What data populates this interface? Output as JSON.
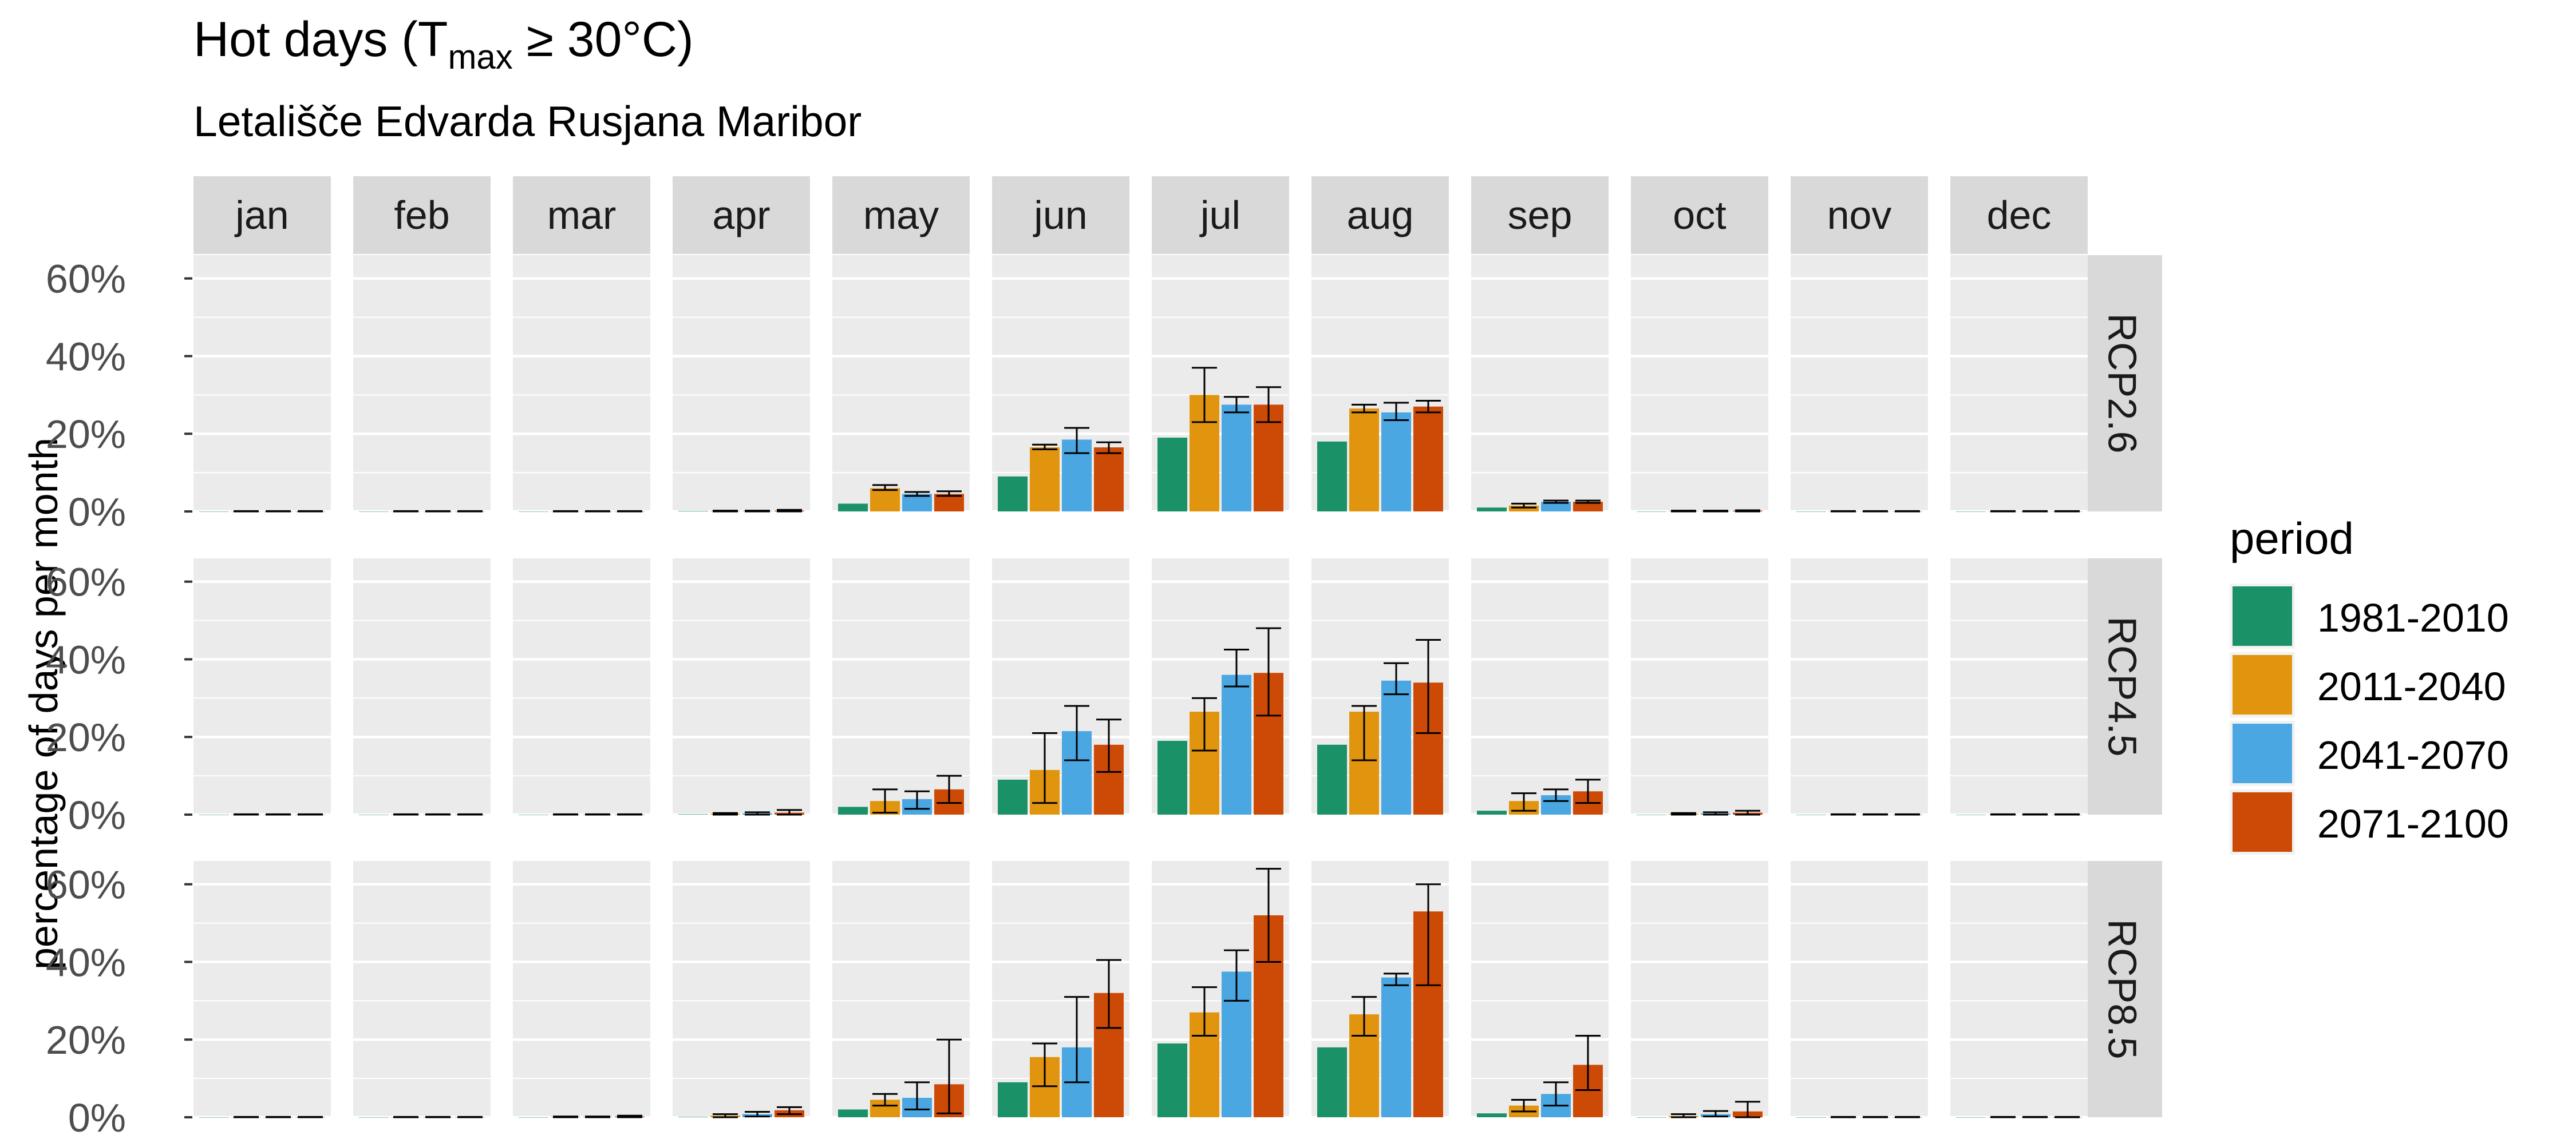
{
  "chart_data": {
    "type": "bar",
    "title_main": "Hot days (T",
    "title_sub": "max",
    "title_end": " ≥ 30°C)",
    "subtitle": "Letališče Edvarda Rusjana Maribor",
    "ylabel": "percentage of days per month",
    "xlabel": "",
    "ylim": [
      0,
      0.66
    ],
    "yticks": [
      0,
      0.2,
      0.4,
      0.6
    ],
    "ytick_labels": [
      "0%",
      "20%",
      "40%",
      "60%"
    ],
    "grid": true,
    "months": [
      "jan",
      "feb",
      "mar",
      "apr",
      "may",
      "jun",
      "jul",
      "aug",
      "sep",
      "oct",
      "nov",
      "dec"
    ],
    "legend": {
      "title": "period",
      "placement": "right",
      "entries": [
        "1981-2010",
        "2011-2040",
        "2041-2070",
        "2071-2100"
      ]
    },
    "colors": [
      "#1a9167",
      "#e1940d",
      "#4ba7e2",
      "#cd4a06"
    ],
    "scenarios": [
      {
        "name": "RCP2.6",
        "values": [
          [
            0,
            0,
            0,
            0
          ],
          [
            0,
            0,
            0,
            0
          ],
          [
            0,
            0,
            0,
            0
          ],
          [
            0.001,
            0.001,
            0.001,
            0.002
          ],
          [
            0.02,
            0.06,
            0.045,
            0.045
          ],
          [
            0.09,
            0.165,
            0.185,
            0.165
          ],
          [
            0.19,
            0.3,
            0.275,
            0.275
          ],
          [
            0.18,
            0.265,
            0.255,
            0.27
          ],
          [
            0.01,
            0.015,
            0.025,
            0.025
          ],
          [
            0,
            0.001,
            0.001,
            0.002
          ],
          [
            0,
            0,
            0,
            0
          ],
          [
            0,
            0,
            0,
            0
          ]
        ],
        "errors": [
          [
            null,
            [
              0,
              0.001
            ],
            [
              0,
              0.001
            ],
            [
              0,
              0.001
            ]
          ],
          [
            null,
            [
              0,
              0.001
            ],
            [
              0,
              0.001
            ],
            [
              0,
              0.001
            ]
          ],
          [
            null,
            [
              0,
              0.001
            ],
            [
              0,
              0.001
            ],
            [
              0,
              0.001
            ]
          ],
          [
            null,
            [
              0,
              0.002
            ],
            [
              0,
              0.002
            ],
            [
              0,
              0.004
            ]
          ],
          [
            null,
            [
              0.055,
              0.068
            ],
            [
              0.04,
              0.05
            ],
            [
              0.04,
              0.052
            ]
          ],
          [
            null,
            [
              0.16,
              0.172
            ],
            [
              0.15,
              0.215
            ],
            [
              0.15,
              0.178
            ]
          ],
          [
            null,
            [
              0.23,
              0.37
            ],
            [
              0.255,
              0.295
            ],
            [
              0.23,
              0.32
            ]
          ],
          [
            null,
            [
              0.255,
              0.275
            ],
            [
              0.235,
              0.28
            ],
            [
              0.255,
              0.285
            ]
          ],
          [
            null,
            [
              0.01,
              0.02
            ],
            [
              0.022,
              0.028
            ],
            [
              0.022,
              0.028
            ]
          ],
          [
            null,
            [
              0,
              0.002
            ],
            [
              0,
              0.002
            ],
            [
              0,
              0.003
            ]
          ],
          [
            null,
            [
              0,
              0.001
            ],
            [
              0,
              0.001
            ],
            [
              0,
              0.001
            ]
          ],
          [
            null,
            [
              0,
              0.001
            ],
            [
              0,
              0.001
            ],
            [
              0,
              0.001
            ]
          ]
        ]
      },
      {
        "name": "RCP4.5",
        "values": [
          [
            0,
            0,
            0,
            0
          ],
          [
            0,
            0,
            0,
            0
          ],
          [
            0,
            0,
            0,
            0
          ],
          [
            0.001,
            0.002,
            0.003,
            0.005
          ],
          [
            0.02,
            0.035,
            0.04,
            0.065
          ],
          [
            0.09,
            0.115,
            0.215,
            0.18
          ],
          [
            0.19,
            0.265,
            0.36,
            0.365
          ],
          [
            0.18,
            0.265,
            0.345,
            0.34
          ],
          [
            0.01,
            0.035,
            0.05,
            0.06
          ],
          [
            0,
            0.002,
            0.003,
            0.005
          ],
          [
            0,
            0,
            0,
            0
          ],
          [
            0,
            0,
            0,
            0
          ]
        ],
        "errors": [
          [
            null,
            [
              0,
              0.001
            ],
            [
              0,
              0.001
            ],
            [
              0,
              0.001
            ]
          ],
          [
            null,
            [
              0,
              0.001
            ],
            [
              0,
              0.001
            ],
            [
              0,
              0.001
            ]
          ],
          [
            null,
            [
              0,
              0.001
            ],
            [
              0,
              0.001
            ],
            [
              0,
              0.001
            ]
          ],
          [
            null,
            [
              0,
              0.004
            ],
            [
              0,
              0.006
            ],
            [
              0,
              0.012
            ]
          ],
          [
            null,
            [
              0.005,
              0.065
            ],
            [
              0.015,
              0.06
            ],
            [
              0.03,
              0.1
            ]
          ],
          [
            null,
            [
              0.03,
              0.21
            ],
            [
              0.14,
              0.28
            ],
            [
              0.11,
              0.245
            ]
          ],
          [
            null,
            [
              0.165,
              0.3
            ],
            [
              0.33,
              0.425
            ],
            [
              0.255,
              0.48
            ]
          ],
          [
            null,
            [
              0.14,
              0.28
            ],
            [
              0.31,
              0.39
            ],
            [
              0.21,
              0.45
            ]
          ],
          [
            null,
            [
              0.01,
              0.055
            ],
            [
              0.035,
              0.065
            ],
            [
              0.03,
              0.09
            ]
          ],
          [
            null,
            [
              0,
              0.004
            ],
            [
              0,
              0.006
            ],
            [
              0,
              0.01
            ]
          ],
          [
            null,
            [
              0,
              0.001
            ],
            [
              0,
              0.001
            ],
            [
              0,
              0.001
            ]
          ],
          [
            null,
            [
              0,
              0.001
            ],
            [
              0,
              0.001
            ],
            [
              0,
              0.001
            ]
          ]
        ]
      },
      {
        "name": "RCP8.5",
        "values": [
          [
            0,
            0,
            0,
            0
          ],
          [
            0,
            0,
            0,
            0
          ],
          [
            0,
            0.001,
            0.001,
            0.002
          ],
          [
            0.001,
            0.004,
            0.008,
            0.018
          ],
          [
            0.02,
            0.045,
            0.05,
            0.085
          ],
          [
            0.09,
            0.155,
            0.18,
            0.32
          ],
          [
            0.19,
            0.27,
            0.375,
            0.52
          ],
          [
            0.18,
            0.265,
            0.36,
            0.53
          ],
          [
            0.01,
            0.03,
            0.06,
            0.135
          ],
          [
            0,
            0.003,
            0.008,
            0.015
          ],
          [
            0,
            0,
            0,
            0
          ],
          [
            0,
            0,
            0,
            0
          ]
        ],
        "errors": [
          [
            null,
            [
              0,
              0.001
            ],
            [
              0,
              0.001
            ],
            [
              0,
              0.001
            ]
          ],
          [
            null,
            [
              0,
              0.001
            ],
            [
              0,
              0.001
            ],
            [
              0,
              0.001
            ]
          ],
          [
            null,
            [
              0,
              0.002
            ],
            [
              0,
              0.002
            ],
            [
              0,
              0.004
            ]
          ],
          [
            null,
            [
              0,
              0.008
            ],
            [
              0.002,
              0.014
            ],
            [
              0.008,
              0.026
            ]
          ],
          [
            null,
            [
              0.03,
              0.06
            ],
            [
              0.02,
              0.09
            ],
            [
              0.01,
              0.2
            ]
          ],
          [
            null,
            [
              0.08,
              0.19
            ],
            [
              0.09,
              0.31
            ],
            [
              0.23,
              0.405
            ]
          ],
          [
            null,
            [
              0.21,
              0.335
            ],
            [
              0.3,
              0.43
            ],
            [
              0.4,
              0.64
            ]
          ],
          [
            null,
            [
              0.21,
              0.31
            ],
            [
              0.34,
              0.37
            ],
            [
              0.34,
              0.6
            ]
          ],
          [
            null,
            [
              0.015,
              0.045
            ],
            [
              0.03,
              0.09
            ],
            [
              0.07,
              0.21
            ]
          ],
          [
            null,
            [
              0,
              0.008
            ],
            [
              0.002,
              0.016
            ],
            [
              0,
              0.04
            ]
          ],
          [
            null,
            [
              0,
              0.001
            ],
            [
              0,
              0.001
            ],
            [
              0,
              0.001
            ]
          ],
          [
            null,
            [
              0,
              0.001
            ],
            [
              0,
              0.001
            ],
            [
              0,
              0.001
            ]
          ]
        ]
      }
    ]
  }
}
